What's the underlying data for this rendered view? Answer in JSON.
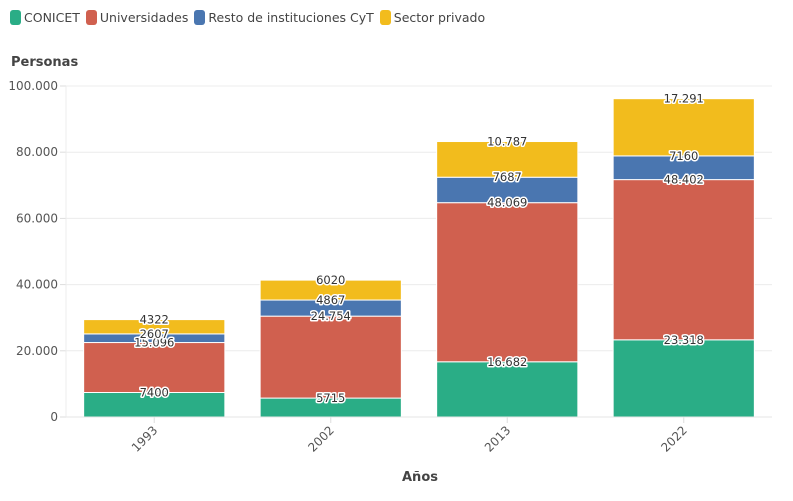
{
  "chart_data": {
    "type": "bar",
    "stacked": true,
    "title": "",
    "ylabel": "Personas",
    "xlabel": "Años",
    "ylim": [
      0,
      100000
    ],
    "yticks": [
      0,
      20000,
      40000,
      60000,
      80000,
      100000
    ],
    "ytick_labels": [
      "0",
      "20.000",
      "40.000",
      "60.000",
      "80.000",
      "100.000"
    ],
    "grid": true,
    "legend_position": "top-left",
    "categories": [
      "1993",
      "2002",
      "2013",
      "2022"
    ],
    "series": [
      {
        "name": "CONICET",
        "color": "#2aad86",
        "values": [
          7400,
          5715,
          16682,
          23318
        ],
        "labels": [
          "7400",
          "5715",
          "16.682",
          "23.318"
        ]
      },
      {
        "name": "Universidades",
        "color": "#d0604f",
        "values": [
          15096,
          24754,
          48069,
          48402
        ],
        "labels": [
          "15.096",
          "24.754",
          "48.069",
          "48.402"
        ]
      },
      {
        "name": "Resto de instituciones CyT",
        "color": "#4a76b0",
        "values": [
          2607,
          4867,
          7687,
          7160
        ],
        "labels": [
          "2607",
          "4867",
          "7687",
          "7160"
        ]
      },
      {
        "name": "Sector privado",
        "color": "#f2bc1d",
        "values": [
          4322,
          6020,
          10787,
          17291
        ],
        "labels": [
          "4322",
          "6020",
          "10.787",
          "17.291"
        ]
      }
    ]
  }
}
